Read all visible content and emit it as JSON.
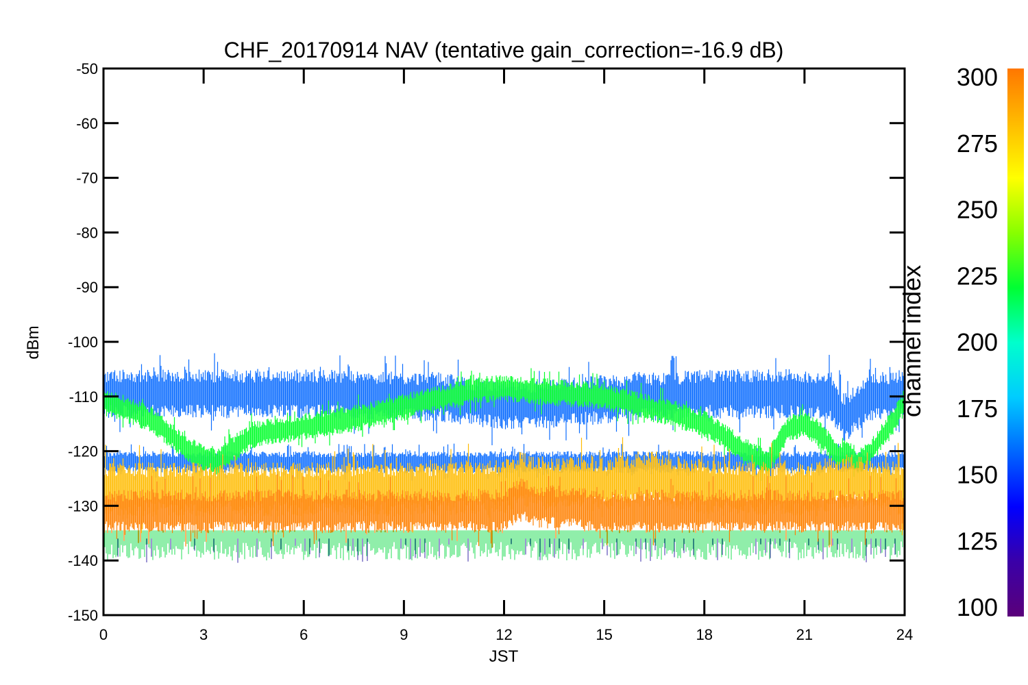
{
  "chart_data": {
    "type": "line",
    "title": "CHF_20170914 NAV (tentative gain_correction=-16.9 dB)",
    "xlabel": "JST",
    "ylabel": "dBm",
    "xlim": [
      0,
      24
    ],
    "ylim": [
      -150,
      -50
    ],
    "x_ticks": [
      "0",
      "3",
      "6",
      "9",
      "12",
      "15",
      "18",
      "21",
      "24"
    ],
    "y_ticks": [
      "-50",
      "-60",
      "-70",
      "-80",
      "-90",
      "-100",
      "-110",
      "-120",
      "-130",
      "-140",
      "-150"
    ],
    "colorbar": {
      "title": "channel index",
      "range": [
        100,
        300
      ],
      "ticks": [
        "300",
        "275",
        "250",
        "225",
        "200",
        "175",
        "150",
        "125",
        "100"
      ],
      "colors": [
        "#5a007a",
        "#3a00a8",
        "#0000ff",
        "#0066ff",
        "#00ccff",
        "#00ffcc",
        "#00ff33",
        "#88ff00",
        "#ffff00",
        "#ffbb00",
        "#ff7700"
      ]
    },
    "series": [
      {
        "channel_index": 155,
        "color": "#0a6cff",
        "x": [
          0,
          1,
          2,
          3,
          4,
          5,
          6,
          7,
          8,
          9,
          10,
          11,
          12,
          13,
          14,
          15,
          16,
          17,
          18,
          19,
          20,
          21,
          21.8,
          22.2,
          23,
          24
        ],
        "center": [
          -109.5,
          -109.5,
          -109.5,
          -109.5,
          -109.5,
          -109.5,
          -109.5,
          -109.5,
          -110,
          -110,
          -110,
          -111,
          -111.5,
          -111.5,
          -111,
          -110.5,
          -110,
          -110,
          -109.5,
          -109.5,
          -109.5,
          -109.5,
          -110,
          -114,
          -110,
          -109.5
        ],
        "spread": 4.5
      },
      {
        "channel_index": 155,
        "color": "#0a6cff",
        "x": [
          0,
          3,
          6,
          9,
          12,
          15,
          18,
          21,
          24
        ],
        "center": [
          -122,
          -122,
          -122,
          -122,
          -122,
          -122,
          -122,
          -122,
          -122
        ],
        "spread": 2
      },
      {
        "channel_index": 230,
        "color": "#00ff2a",
        "x": [
          0,
          0.5,
          1,
          1.5,
          2,
          2.5,
          3,
          3.4,
          3.8,
          4.5,
          5,
          6,
          7,
          8,
          9,
          10,
          11,
          12,
          13,
          14,
          15,
          16,
          17,
          18,
          18.5,
          19,
          19.5,
          19.9,
          20.2,
          20.5,
          21,
          21.5,
          22,
          22.3,
          22.6,
          23,
          23.5,
          24
        ],
        "center": [
          -111,
          -112,
          -113,
          -114.5,
          -117,
          -119.5,
          -121.5,
          -122,
          -120,
          -117,
          -116.5,
          -115.5,
          -114.5,
          -113.5,
          -112,
          -110.5,
          -109,
          -108.5,
          -109,
          -109.5,
          -110,
          -111.5,
          -113,
          -115,
          -117,
          -119,
          -121,
          -122,
          -119,
          -116,
          -115,
          -117,
          -121,
          -120,
          -122,
          -120,
          -116,
          -111
        ],
        "spread": 2.5
      },
      {
        "channel_index": 280,
        "color": "#ffbb00",
        "x": [
          0,
          3,
          6,
          9,
          12,
          12.5,
          13,
          15,
          16.5,
          18,
          21,
          22.3,
          24
        ],
        "center": [
          -127,
          -127,
          -127,
          -127,
          -126.5,
          -125,
          -126,
          -126,
          -125,
          -126.5,
          -127,
          -125.5,
          -127
        ],
        "spread": 5
      },
      {
        "channel_index": 295,
        "color": "#ff8000",
        "x": [
          0,
          3,
          6,
          9,
          12,
          12.5,
          13,
          15,
          18,
          21,
          24
        ],
        "center": [
          -131,
          -131,
          -131,
          -131,
          -131,
          -128.5,
          -130,
          -131,
          -131,
          -131,
          -131
        ],
        "spread": 4
      }
    ]
  }
}
